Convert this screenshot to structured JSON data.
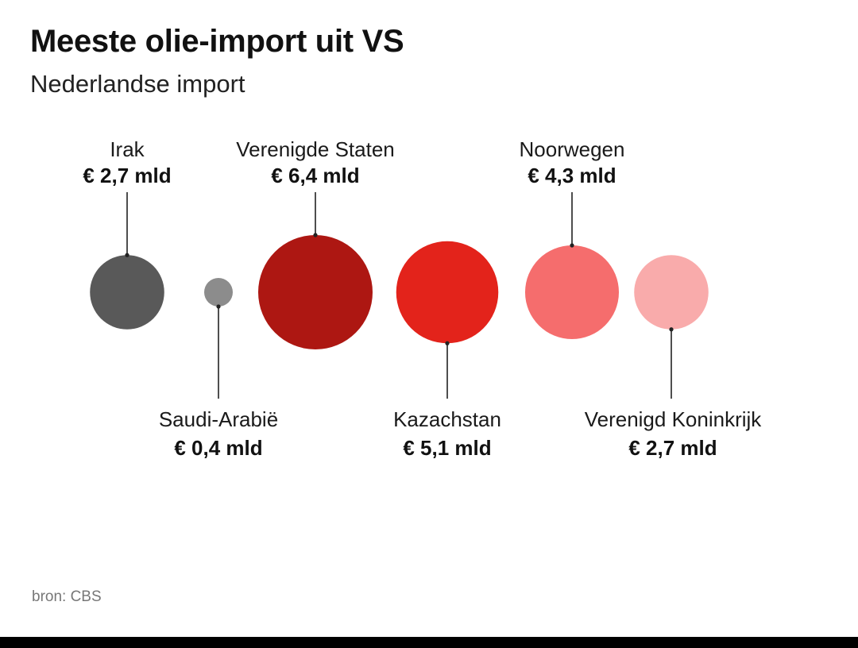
{
  "header": {
    "title": "Meeste olie-import uit VS",
    "subtitle": "Nederlandse import"
  },
  "footer": {
    "source": "bron: CBS"
  },
  "chart_data": {
    "type": "bubble",
    "title": "Meeste olie-import uit VS",
    "subtitle": "Nederlandse import",
    "unit": "mld",
    "currency": "€",
    "points": [
      {
        "name": "Irak",
        "value": 2.7,
        "value_label": "€ 2,7 mld",
        "color": "#595959",
        "label_position": "top"
      },
      {
        "name": "Saudi-Arabië",
        "value": 0.4,
        "value_label": "€ 0,4 mld",
        "color": "#8c8c8c",
        "label_position": "bottom"
      },
      {
        "name": "Verenigde Staten",
        "value": 6.4,
        "value_label": "€ 6,4 mld",
        "color": "#ad1712",
        "label_position": "top"
      },
      {
        "name": "Kazachstan",
        "value": 5.1,
        "value_label": "€ 5,1 mld",
        "color": "#e3231b",
        "label_position": "bottom"
      },
      {
        "name": "Noorwegen",
        "value": 4.3,
        "value_label": "€ 4,3 mld",
        "color": "#f56d6d",
        "label_position": "top"
      },
      {
        "name": "Verenigd Koninkrijk",
        "value": 2.7,
        "value_label": "€ 2,7 mld",
        "color": "#f9abab",
        "label_position": "bottom"
      }
    ]
  }
}
